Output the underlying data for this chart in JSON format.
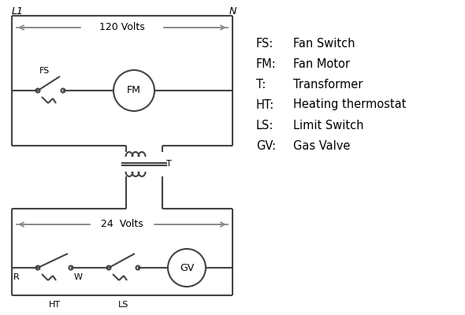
{
  "background_color": "#ffffff",
  "line_color": "#444444",
  "arrow_color": "#888888",
  "text_color": "#000000",
  "legend_items": [
    [
      "FS:",
      "Fan Switch"
    ],
    [
      "FM:",
      "Fan Motor"
    ],
    [
      "T:",
      "Transformer"
    ],
    [
      "HT:",
      "Heating thermostat"
    ],
    [
      "LS:",
      "Limit Switch"
    ],
    [
      "GV:",
      "Gas Valve"
    ]
  ],
  "label_L1": "L1",
  "label_N": "N",
  "label_120V": "120 Volts",
  "label_24V": "24  Volts",
  "label_T": "T",
  "label_FS": "FS",
  "label_FM": "FM",
  "label_GV": "GV",
  "label_R": "R",
  "label_W": "W",
  "label_HT": "HT",
  "label_LS": "LS"
}
